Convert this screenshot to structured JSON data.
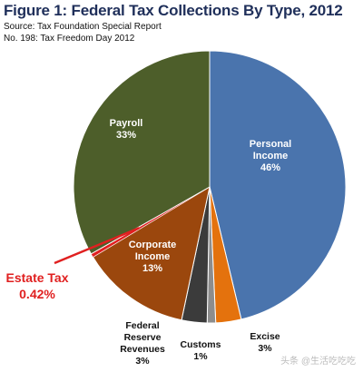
{
  "chart_data": {
    "type": "pie",
    "title": "Figure 1: Federal Tax Collections By Type, 2012",
    "subtitle_lines": [
      "Source: Tax Foundation Special Report",
      "No. 198: Tax Freedom Day 2012"
    ],
    "slices": [
      {
        "name": "Personal Income",
        "label_lines": [
          "Personal",
          "Income"
        ],
        "value": 46,
        "value_label": "46%",
        "color": "#4a74ad"
      },
      {
        "name": "Excise",
        "label_lines": [
          "Excise"
        ],
        "value": 3,
        "value_label": "3%",
        "color": "#e4720d"
      },
      {
        "name": "Customs",
        "label_lines": [
          "Customs"
        ],
        "value": 1,
        "value_label": "1%",
        "color": "#8d8d8d"
      },
      {
        "name": "Federal Reserve Revenues",
        "label_lines": [
          "Federal",
          "Reserve",
          "Revenues"
        ],
        "value": 3,
        "value_label": "3%",
        "color": "#3b3b3b"
      },
      {
        "name": "Corporate Income",
        "label_lines": [
          "Corporate",
          "Income"
        ],
        "value": 13,
        "value_label": "13%",
        "color": "#9b470d"
      },
      {
        "name": "Estate Tax",
        "label_lines": [
          "Estate Tax"
        ],
        "value": 0.42,
        "value_label": "0.42%",
        "color": "#e02020"
      },
      {
        "name": "Payroll",
        "label_lines": [
          "Payroll"
        ],
        "value": 33,
        "value_label": "33%",
        "color": "#4d5e2a"
      }
    ]
  },
  "watermark": "头条 @生活吃吃吃"
}
